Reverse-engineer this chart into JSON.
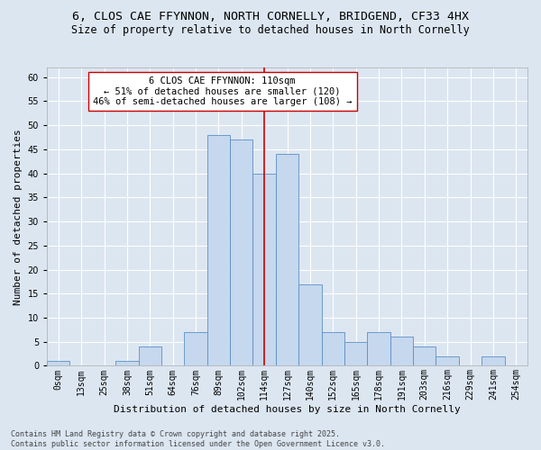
{
  "title_line1": "6, CLOS CAE FFYNNON, NORTH CORNELLY, BRIDGEND, CF33 4HX",
  "title_line2": "Size of property relative to detached houses in North Cornelly",
  "xlabel": "Distribution of detached houses by size in North Cornelly",
  "ylabel": "Number of detached properties",
  "bin_labels": [
    "0sqm",
    "13sqm",
    "25sqm",
    "38sqm",
    "51sqm",
    "64sqm",
    "76sqm",
    "89sqm",
    "102sqm",
    "114sqm",
    "127sqm",
    "140sqm",
    "152sqm",
    "165sqm",
    "178sqm",
    "191sqm",
    "203sqm",
    "216sqm",
    "229sqm",
    "241sqm",
    "254sqm"
  ],
  "bar_values": [
    1,
    0,
    0,
    1,
    4,
    0,
    7,
    48,
    47,
    40,
    44,
    17,
    7,
    5,
    7,
    6,
    4,
    2,
    0,
    2,
    0
  ],
  "bar_color": "#c5d8ed",
  "bar_edge_color": "#5b8fc7",
  "background_color": "#dce6f1",
  "grid_color": "#ffffff",
  "ylim": [
    0,
    62
  ],
  "yticks": [
    0,
    5,
    10,
    15,
    20,
    25,
    30,
    35,
    40,
    45,
    50,
    55,
    60
  ],
  "vline_x": 9.5,
  "vline_color": "#cc0000",
  "annotation_text": "6 CLOS CAE FFYNNON: 110sqm\n← 51% of detached houses are smaller (120)\n46% of semi-detached houses are larger (108) →",
  "annotation_box_color": "#ffffff",
  "annotation_box_edge": "#cc0000",
  "footer_line1": "Contains HM Land Registry data © Crown copyright and database right 2025.",
  "footer_line2": "Contains public sector information licensed under the Open Government Licence v3.0.",
  "title_fontsize": 9.5,
  "subtitle_fontsize": 8.5,
  "axis_label_fontsize": 8,
  "tick_fontsize": 7,
  "annotation_fontsize": 7.5,
  "footer_fontsize": 6
}
